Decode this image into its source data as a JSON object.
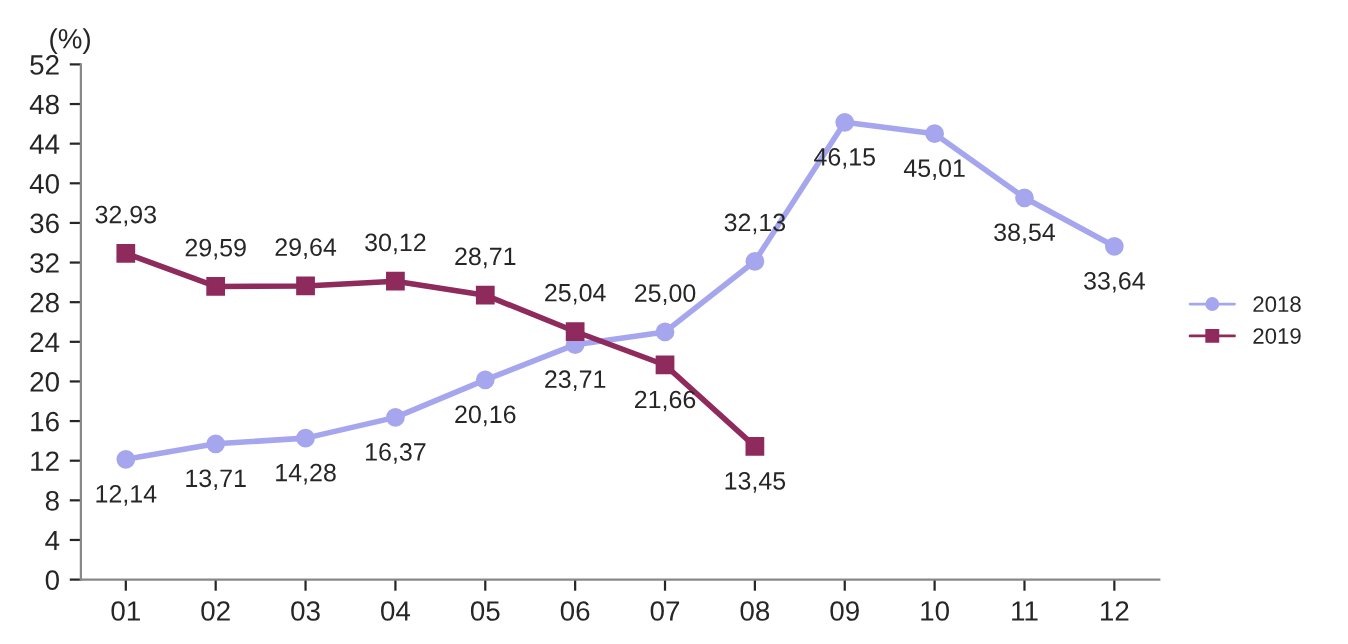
{
  "chart_data": {
    "type": "line",
    "ylabel": "(%)",
    "categories": [
      "01",
      "02",
      "03",
      "04",
      "05",
      "06",
      "07",
      "08",
      "09",
      "10",
      "11",
      "12"
    ],
    "series": [
      {
        "name": "2018",
        "color": "#a6a6ee",
        "marker": "circle",
        "values": [
          12.14,
          13.71,
          14.28,
          16.37,
          20.16,
          23.71,
          25.0,
          32.13,
          46.15,
          45.01,
          38.54,
          33.64
        ],
        "value_labels": [
          "12,14",
          "13,71",
          "14,28",
          "16,37",
          "20,16",
          "23,71",
          "25,00",
          "32,13",
          "46,15",
          "45,01",
          "38,54",
          "33,64"
        ]
      },
      {
        "name": "2019",
        "color": "#8e2a5c",
        "marker": "square",
        "values": [
          32.93,
          29.59,
          29.64,
          30.12,
          28.71,
          25.04,
          21.66,
          13.45,
          null,
          null,
          null,
          null
        ],
        "value_labels": [
          "32,93",
          "29,59",
          "29,64",
          "30,12",
          "28,71",
          "25,04",
          "21,66",
          "13,45",
          null,
          null,
          null,
          null
        ]
      }
    ],
    "ylim": [
      0,
      52
    ],
    "yticks": [
      0,
      4,
      8,
      12,
      16,
      20,
      24,
      28,
      32,
      36,
      40,
      44,
      48,
      52
    ],
    "grid": false,
    "legend": "right",
    "line_style": "solid"
  }
}
